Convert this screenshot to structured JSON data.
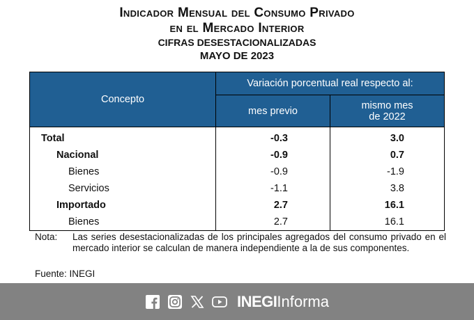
{
  "title": {
    "line1": "Indicador Mensual del Consumo Privado",
    "line2": "en el Mercado Interior",
    "line3": "CIFRAS DESESTACIONALIZADAS",
    "line4": "MAYO DE 2023"
  },
  "table": {
    "headers": {
      "concepto": "Concepto",
      "variacion": "Variación porcentual real respecto al:",
      "mes_previo": "mes previo",
      "mismo_mes_line1": "mismo mes",
      "mismo_mes_line2": "de 2022"
    },
    "rows": [
      {
        "label": "Total",
        "mes_previo": "-0.3",
        "mismo_mes": "3.0"
      },
      {
        "label": "Nacional",
        "mes_previo": "-0.9",
        "mismo_mes": "0.7"
      },
      {
        "label": "Bienes",
        "mes_previo": "-0.9",
        "mismo_mes": "-1.9"
      },
      {
        "label": "Servicios",
        "mes_previo": "-1.1",
        "mismo_mes": "3.8"
      },
      {
        "label": "Importado",
        "mes_previo": "2.7",
        "mismo_mes": "16.1"
      },
      {
        "label": "Bienes",
        "mes_previo": "2.7",
        "mismo_mes": "16.1"
      }
    ]
  },
  "note": {
    "label": "Nota:",
    "text": "Las series desestacionalizadas de los principales agregados del consumo privado en el mercado interior se calculan de manera independiente a la de sus componentes."
  },
  "source": "Fuente: INEGI",
  "footer": {
    "icons": [
      "facebook-icon",
      "instagram-icon",
      "x-icon",
      "youtube-icon"
    ],
    "brand_bold": "INEGI",
    "brand_light": "Informa"
  },
  "colors": {
    "header_bg": "#205f93",
    "footer_bg": "#828282"
  }
}
